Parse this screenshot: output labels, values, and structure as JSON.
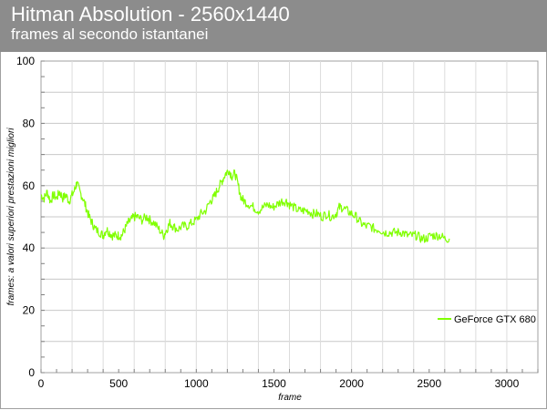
{
  "header": {
    "title": "Hitman Absolution - 2560x1440",
    "subtitle": "frames al secondo istantanei"
  },
  "chart_data": {
    "type": "line",
    "title": "Hitman Absolution - 2560x1440",
    "subtitle": "frames al secondo istantanei",
    "xlabel": "frame",
    "ylabel": "frames: a valori superiori prestazioni migliori",
    "xlim": [
      0,
      3200
    ],
    "ylim": [
      0,
      100
    ],
    "x_ticks": [
      0,
      500,
      1000,
      1500,
      2000,
      2500,
      3000
    ],
    "y_ticks": [
      0,
      20,
      40,
      60,
      80,
      100
    ],
    "x_minor_step": 100,
    "y_minor_step": 10,
    "grid": true,
    "legend_position": "right",
    "series": [
      {
        "name": "GeForce GTX 680",
        "color": "#80ff00",
        "points": [
          [
            0,
            57
          ],
          [
            20,
            56
          ],
          [
            40,
            58
          ],
          [
            60,
            55
          ],
          [
            80,
            57
          ],
          [
            100,
            56
          ],
          [
            120,
            58
          ],
          [
            140,
            56
          ],
          [
            160,
            57
          ],
          [
            180,
            55
          ],
          [
            200,
            57
          ],
          [
            220,
            59
          ],
          [
            230,
            61
          ],
          [
            250,
            58
          ],
          [
            270,
            56
          ],
          [
            290,
            53
          ],
          [
            310,
            50
          ],
          [
            330,
            48
          ],
          [
            350,
            46
          ],
          [
            380,
            45
          ],
          [
            400,
            44
          ],
          [
            420,
            46
          ],
          [
            440,
            45
          ],
          [
            460,
            44
          ],
          [
            480,
            44
          ],
          [
            500,
            44
          ],
          [
            520,
            44
          ],
          [
            540,
            46
          ],
          [
            560,
            48
          ],
          [
            580,
            49
          ],
          [
            600,
            50
          ],
          [
            620,
            50
          ],
          [
            650,
            49
          ],
          [
            680,
            50
          ],
          [
            700,
            49
          ],
          [
            730,
            48
          ],
          [
            760,
            46
          ],
          [
            790,
            44
          ],
          [
            810,
            46
          ],
          [
            830,
            48
          ],
          [
            850,
            47
          ],
          [
            880,
            46
          ],
          [
            910,
            47
          ],
          [
            940,
            47
          ],
          [
            970,
            48
          ],
          [
            1000,
            49
          ],
          [
            1030,
            51
          ],
          [
            1060,
            52
          ],
          [
            1090,
            55
          ],
          [
            1110,
            56
          ],
          [
            1130,
            58
          ],
          [
            1150,
            60
          ],
          [
            1170,
            62
          ],
          [
            1190,
            64
          ],
          [
            1210,
            65
          ],
          [
            1230,
            63
          ],
          [
            1250,
            64
          ],
          [
            1270,
            60
          ],
          [
            1290,
            56
          ],
          [
            1310,
            55
          ],
          [
            1340,
            54
          ],
          [
            1370,
            53
          ],
          [
            1400,
            52
          ],
          [
            1430,
            53
          ],
          [
            1460,
            54
          ],
          [
            1490,
            53
          ],
          [
            1520,
            54
          ],
          [
            1550,
            55
          ],
          [
            1580,
            55
          ],
          [
            1600,
            54
          ],
          [
            1630,
            53
          ],
          [
            1660,
            52
          ],
          [
            1690,
            52
          ],
          [
            1720,
            52
          ],
          [
            1750,
            51
          ],
          [
            1780,
            51
          ],
          [
            1810,
            50
          ],
          [
            1840,
            51
          ],
          [
            1870,
            50
          ],
          [
            1900,
            51
          ],
          [
            1920,
            53
          ],
          [
            1940,
            53
          ],
          [
            1970,
            52
          ],
          [
            2000,
            51
          ],
          [
            2030,
            50
          ],
          [
            2060,
            48
          ],
          [
            2090,
            47
          ],
          [
            2120,
            47
          ],
          [
            2150,
            46
          ],
          [
            2180,
            46
          ],
          [
            2210,
            45
          ],
          [
            2240,
            45
          ],
          [
            2270,
            45
          ],
          [
            2300,
            45
          ],
          [
            2330,
            45
          ],
          [
            2360,
            44
          ],
          [
            2390,
            44
          ],
          [
            2420,
            44
          ],
          [
            2450,
            43
          ],
          [
            2480,
            43
          ],
          [
            2510,
            44
          ],
          [
            2540,
            44
          ],
          [
            2570,
            44
          ],
          [
            2600,
            43
          ],
          [
            2630,
            43
          ]
        ]
      }
    ]
  }
}
